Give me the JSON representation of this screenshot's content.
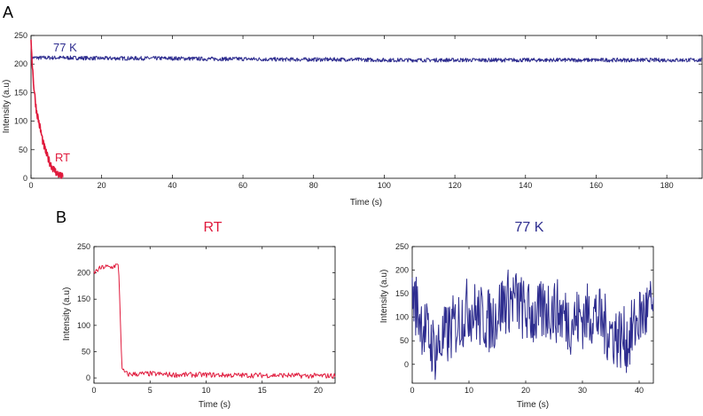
{
  "panels": {
    "a_label": "A",
    "b_label": "B"
  },
  "colors": {
    "rt": "#e01a3c",
    "k77": "#2e2d8f",
    "axis": "#000000"
  },
  "chart_data": [
    {
      "id": "A",
      "type": "line",
      "title": "",
      "xlabel": "Time (s)",
      "ylabel": "Intensity (a.u)",
      "xlim": [
        0,
        190
      ],
      "ylim": [
        0,
        250
      ],
      "xticks": [
        0,
        20,
        40,
        60,
        80,
        100,
        120,
        140,
        160,
        180
      ],
      "yticks": [
        0,
        50,
        100,
        150,
        200,
        250
      ],
      "series": [
        {
          "name": "77 K",
          "color": "#2e2d8f",
          "x": [
            0,
            10,
            20,
            30,
            40,
            50,
            60,
            70,
            80,
            90,
            100,
            110,
            120,
            130,
            140,
            150,
            160,
            170,
            180,
            190
          ],
          "y": [
            211,
            211,
            210,
            210,
            210,
            209,
            209,
            208,
            208,
            208,
            207,
            207,
            207,
            207,
            207,
            207,
            207,
            207,
            207,
            207
          ]
        },
        {
          "name": "RT",
          "color": "#e01a3c",
          "x": [
            0,
            0.3,
            0.8,
            1.5,
            2.5,
            3.5,
            4.5,
            5.5,
            6.5,
            7.5,
            8.5,
            9.0
          ],
          "y": [
            245,
            205,
            160,
            120,
            90,
            60,
            40,
            25,
            15,
            8,
            3,
            2
          ]
        }
      ]
    },
    {
      "id": "B-RT",
      "type": "line",
      "title": "RT",
      "xlabel": "Time (s)",
      "ylabel": "Intensity (a.u)",
      "xlim": [
        0,
        21.5
      ],
      "ylim": [
        -10,
        250
      ],
      "xticks": [
        0,
        5,
        10,
        15,
        20
      ],
      "yticks": [
        0,
        50,
        100,
        150,
        200,
        250
      ],
      "series": [
        {
          "name": "RT",
          "color": "#e01a3c",
          "x": [
            0,
            0.5,
            1.0,
            1.5,
            2.0,
            2.2,
            2.5,
            3,
            5,
            7,
            10,
            13,
            15,
            17,
            19,
            21.5
          ],
          "y": [
            200,
            208,
            212,
            210,
            215,
            212,
            15,
            7,
            8,
            6,
            6,
            5,
            5,
            5,
            4,
            4
          ]
        }
      ]
    },
    {
      "id": "B-77K",
      "type": "line",
      "title": "77 K",
      "xlabel": "Time (s)",
      "ylabel": "Intensity (a.u)",
      "xlim": [
        0,
        42.5
      ],
      "ylim": [
        -40,
        250
      ],
      "xticks": [
        0,
        10,
        20,
        30,
        40
      ],
      "yticks": [
        0,
        50,
        100,
        150,
        200,
        250
      ],
      "series": [
        {
          "name": "77 K",
          "color": "#2e2d8f",
          "x": [
            0,
            2,
            4,
            6,
            8,
            10,
            12,
            14,
            16,
            18,
            20,
            22,
            24,
            26,
            28,
            30,
            32,
            34,
            36,
            38,
            40,
            42.5
          ],
          "y": [
            150,
            80,
            30,
            60,
            90,
            120,
            100,
            90,
            130,
            140,
            110,
            100,
            120,
            110,
            90,
            100,
            110,
            80,
            60,
            50,
            100,
            120
          ]
        }
      ]
    }
  ]
}
